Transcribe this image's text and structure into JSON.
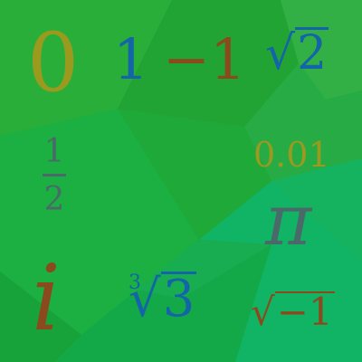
{
  "symbols": {
    "zero": "0",
    "one": "1",
    "minus_one": "−1",
    "sqrt2": "2",
    "half_num": "1",
    "half_den": "2",
    "hundredth": "0.01",
    "pi": "π",
    "i": "i",
    "cbrt3_index": "3",
    "cbrt3_radicand": "3",
    "sqrt_neg1_radicand": "−1",
    "radical_sign": "√"
  },
  "colors": {
    "olive": "#9a9a1e",
    "blue": "#1464a8",
    "brown": "#8a4a1e",
    "slate": "#4a6a6a",
    "background_green": "#1fa235"
  }
}
